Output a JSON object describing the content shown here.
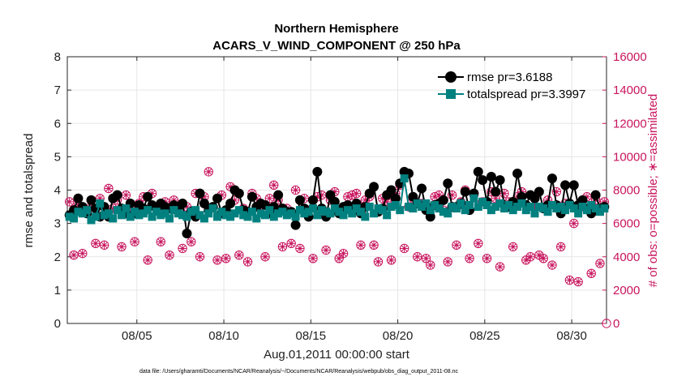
{
  "chart_data": {
    "type": "line",
    "title": "Northern Hemisphere",
    "subtitle": "ACARS_V_WIND_COMPONENT @ 250 hPa",
    "xlabel": "Aug.01,2011 00:00:00 start",
    "ylabel": "rmse and totalspread",
    "ylabel_right": "# of obs: o=possible; ∗=assimilated",
    "footnote": "data file: /Users/gharamti/Documents/NCAR/Reanalysis/~/Documents/NCAR/Reanalysis/webpub/obs_diag_output_2011-08.nc",
    "xlim": [
      1.0,
      32.0
    ],
    "ylim": [
      0,
      8
    ],
    "ylim_right": [
      0,
      16000
    ],
    "x_ticks": [
      5,
      10,
      15,
      20,
      25,
      30
    ],
    "x_tick_labels": [
      "08/05",
      "08/10",
      "08/15",
      "08/20",
      "08/25",
      "08/30"
    ],
    "y_ticks": [
      "0",
      "1",
      "2",
      "3",
      "4",
      "5",
      "6",
      "7",
      "8"
    ],
    "y_ticks_right": [
      "0",
      "2000",
      "4000",
      "6000",
      "8000",
      "10000",
      "12000",
      "14000",
      "16000"
    ],
    "grid": true,
    "legend_position": "top-right",
    "colors": {
      "rmse": "#000000",
      "totalspread": "#00807f",
      "obs": "#c8155e"
    },
    "x": [
      1.125,
      1.375,
      1.625,
      1.875,
      2.125,
      2.375,
      2.625,
      2.875,
      3.125,
      3.375,
      3.625,
      3.875,
      4.125,
      4.375,
      4.625,
      4.875,
      5.125,
      5.375,
      5.625,
      5.875,
      6.125,
      6.375,
      6.625,
      6.875,
      7.125,
      7.375,
      7.625,
      7.875,
      8.125,
      8.375,
      8.625,
      8.875,
      9.125,
      9.375,
      9.625,
      9.875,
      10.125,
      10.375,
      10.625,
      10.875,
      11.125,
      11.375,
      11.625,
      11.875,
      12.125,
      12.375,
      12.625,
      12.875,
      13.125,
      13.375,
      13.625,
      13.875,
      14.125,
      14.375,
      14.625,
      14.875,
      15.125,
      15.375,
      15.625,
      15.875,
      16.125,
      16.375,
      16.625,
      16.875,
      17.125,
      17.375,
      17.625,
      17.875,
      18.125,
      18.375,
      18.625,
      18.875,
      19.125,
      19.375,
      19.625,
      19.875,
      20.125,
      20.375,
      20.625,
      20.875,
      21.125,
      21.375,
      21.625,
      21.875,
      22.125,
      22.375,
      22.625,
      22.875,
      23.125,
      23.375,
      23.625,
      23.875,
      24.125,
      24.375,
      24.625,
      24.875,
      25.125,
      25.375,
      25.625,
      25.875,
      26.125,
      26.375,
      26.625,
      26.875,
      27.125,
      27.375,
      27.625,
      27.875,
      28.125,
      28.375,
      28.625,
      28.875,
      29.125,
      29.375,
      29.625,
      29.875,
      30.125,
      30.375,
      30.625,
      30.875,
      31.125,
      31.375,
      31.625,
      31.875
    ],
    "series": [
      {
        "name": "rmse pr=3.6188",
        "axis": "left",
        "values": [
          3.25,
          3.4,
          3.75,
          3.5,
          3.3,
          3.7,
          3.45,
          3.2,
          3.5,
          3.2,
          3.75,
          3.85,
          3.45,
          3.3,
          3.6,
          3.3,
          3.55,
          3.45,
          3.8,
          3.55,
          3.45,
          3.6,
          3.5,
          3.45,
          3.55,
          3.5,
          3.6,
          2.7,
          3.35,
          3.2,
          3.9,
          3.6,
          3.4,
          3.5,
          3.75,
          3.3,
          3.4,
          3.6,
          4.0,
          3.9,
          3.4,
          3.35,
          3.8,
          3.5,
          3.6,
          3.55,
          3.3,
          3.5,
          3.85,
          3.45,
          3.35,
          3.35,
          2.95,
          3.7,
          3.45,
          3.2,
          3.7,
          4.55,
          3.45,
          3.2,
          3.85,
          3.65,
          3.3,
          3.5,
          3.55,
          3.4,
          3.6,
          3.3,
          3.5,
          3.9,
          4.1,
          3.35,
          3.45,
          3.85,
          4.0,
          3.75,
          4.2,
          4.55,
          4.5,
          3.8,
          3.6,
          4.05,
          3.4,
          3.2,
          3.55,
          3.6,
          3.7,
          4.2,
          3.5,
          3.5,
          3.6,
          3.95,
          3.4,
          3.9,
          4.55,
          4.3,
          3.65,
          4.4,
          3.95,
          4.3,
          3.55,
          3.5,
          3.65,
          4.5,
          3.8,
          3.55,
          3.85,
          3.75,
          3.95,
          3.45,
          3.55,
          4.35,
          3.55,
          3.3,
          4.15,
          3.6,
          4.15,
          3.55,
          3.7,
          3.45,
          3.3,
          3.85,
          3.45,
          3.5
        ]
      },
      {
        "name": "totalspread pr=3.3997",
        "axis": "left",
        "values": [
          3.2,
          3.15,
          3.35,
          3.3,
          3.4,
          3.1,
          3.2,
          3.6,
          3.25,
          3.3,
          3.15,
          3.4,
          3.25,
          3.45,
          3.2,
          3.35,
          3.25,
          3.3,
          3.4,
          3.2,
          3.35,
          3.25,
          3.3,
          3.15,
          3.4,
          3.3,
          3.25,
          3.2,
          3.35,
          3.4,
          3.25,
          3.15,
          3.3,
          3.45,
          3.2,
          3.35,
          3.25,
          3.2,
          3.3,
          3.4,
          3.25,
          3.2,
          3.35,
          3.15,
          3.3,
          3.25,
          3.4,
          3.2,
          3.3,
          3.35,
          3.25,
          3.3,
          3.2,
          3.4,
          3.3,
          3.35,
          3.45,
          3.25,
          3.4,
          3.35,
          3.3,
          3.45,
          3.35,
          3.25,
          3.4,
          3.3,
          3.45,
          3.35,
          3.2,
          3.5,
          3.3,
          3.45,
          3.4,
          3.25,
          3.5,
          3.55,
          3.4,
          4.35,
          3.5,
          3.45,
          3.6,
          3.5,
          3.6,
          3.4,
          3.55,
          3.45,
          3.35,
          3.3,
          3.5,
          3.45,
          3.6,
          3.4,
          3.55,
          3.75,
          3.5,
          3.65,
          3.55,
          3.4,
          3.5,
          3.6,
          3.45,
          3.55,
          3.4,
          3.5,
          3.6,
          3.4,
          3.5,
          3.3,
          3.5,
          3.45,
          3.35,
          3.55,
          3.45,
          3.5,
          3.4,
          3.55,
          3.45,
          3.3,
          3.5,
          3.4,
          3.55,
          3.45,
          3.35,
          3.45
        ]
      },
      {
        "name": "# of obs possible",
        "axis": "right",
        "marker": "circle",
        "values": [
          7300,
          4100,
          7100,
          4200,
          6800,
          7000,
          4800,
          7500,
          4700,
          8100,
          6900,
          7400,
          4600,
          7700,
          7000,
          4900,
          7200,
          7600,
          3800,
          7800,
          7000,
          4900,
          7300,
          4100,
          7400,
          7000,
          4500,
          7000,
          4900,
          7800,
          4000,
          7600,
          9100,
          7000,
          3800,
          7700,
          3900,
          8200,
          7400,
          4100,
          6900,
          3700,
          7800,
          7500,
          7100,
          4000,
          7500,
          8300,
          7400,
          4600,
          6900,
          4800,
          8000,
          4500,
          7500,
          6800,
          3900,
          7600,
          7700,
          4400,
          7400,
          7900,
          3900,
          4200,
          7600,
          7700,
          7800,
          4700,
          7400,
          7600,
          4700,
          3700,
          7500,
          7300,
          3800,
          7800,
          8300,
          4500,
          7000,
          7500,
          4000,
          7200,
          3900,
          3500,
          7600,
          7700,
          6800,
          3700,
          7700,
          4700,
          7300,
          8000,
          3900,
          7700,
          4800,
          7300,
          3900,
          7900,
          7500,
          3400,
          7800,
          7300,
          4600,
          7600,
          7900,
          3800,
          4000,
          7000,
          4100,
          3900,
          7400,
          3500,
          7900,
          4600,
          7200,
          2600,
          6000,
          2500,
          7000,
          7600,
          3000,
          7400,
          3600,
          7300
        ]
      },
      {
        "name": "# of obs assimilated",
        "axis": "right",
        "marker": "asterisk",
        "values": [
          7300,
          4100,
          7100,
          4200,
          6800,
          7000,
          4800,
          7500,
          4700,
          8100,
          6900,
          7400,
          4600,
          7700,
          7000,
          4900,
          7200,
          7600,
          3800,
          7800,
          7000,
          4900,
          7300,
          4100,
          7400,
          7000,
          4500,
          7000,
          4900,
          7800,
          4000,
          7600,
          9100,
          7000,
          3800,
          7700,
          3900,
          8200,
          7400,
          4100,
          6900,
          3700,
          7800,
          7500,
          7100,
          4000,
          7500,
          8300,
          7400,
          4600,
          6900,
          4800,
          8000,
          4500,
          7500,
          6800,
          3900,
          7600,
          7700,
          4400,
          7400,
          7900,
          3900,
          4200,
          7600,
          7700,
          7800,
          4700,
          7400,
          7600,
          4700,
          3700,
          7500,
          7300,
          3800,
          7800,
          8300,
          4500,
          7000,
          7500,
          4000,
          7200,
          3900,
          3500,
          7600,
          7700,
          6800,
          3700,
          7700,
          4700,
          7300,
          8000,
          3900,
          7700,
          4800,
          7300,
          3900,
          7900,
          7500,
          3400,
          7800,
          7300,
          4600,
          7600,
          7900,
          3800,
          4000,
          7000,
          4100,
          3900,
          7400,
          3500,
          7900,
          4600,
          7200,
          2600,
          6000,
          2500,
          7000,
          7600,
          3000,
          7400,
          3600,
          7300
        ]
      }
    ]
  }
}
